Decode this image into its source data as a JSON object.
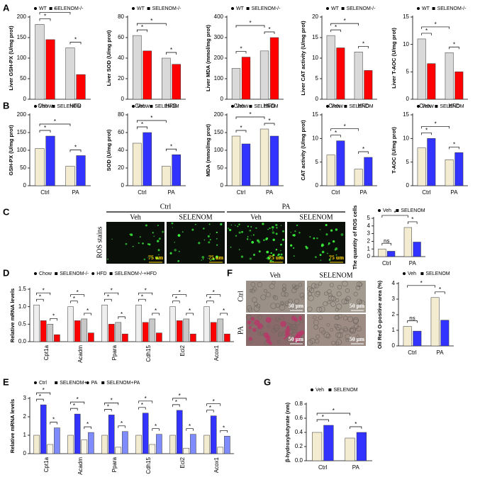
{
  "panel_labels": [
    "A",
    "B",
    "C",
    "D",
    "E",
    "F",
    "G"
  ],
  "panel_c_images": {
    "groups": [
      "Ctrl",
      "PA"
    ],
    "columns": [
      "Veh",
      "SELENOM",
      "Veh",
      "SELENOM"
    ],
    "row_label": "ROS stains",
    "scale_bar": "75 um"
  },
  "panel_f_images": {
    "columns": [
      "Veh",
      "SELENOM"
    ],
    "rows": [
      "Ctrl",
      "PA"
    ],
    "scale_bar": "50 μm"
  },
  "chart_data": [
    {
      "type": "bar",
      "ylabel": "Liver GSH-PX (U/mg prot)",
      "categories": [
        "Chow",
        "HFD"
      ],
      "series": [
        {
          "name": "WT",
          "color": "#d9d9d9",
          "values": [
            182,
            125
          ]
        },
        {
          "name": "SELENOM-/-",
          "color": "#ff0000",
          "values": [
            145,
            60
          ]
        }
      ],
      "ylim": [
        0,
        200
      ],
      "yticks": [
        0,
        50,
        100,
        150,
        200
      ],
      "sig": [
        "*",
        "*",
        "*"
      ]
    },
    {
      "type": "bar",
      "ylabel": "Liver SOD (U/mg prot)",
      "categories": [
        "Chow",
        "HFD"
      ],
      "series": [
        {
          "name": "WT",
          "color": "#d9d9d9",
          "values": [
            62,
            40
          ]
        },
        {
          "name": "SELENOM-/-",
          "color": "#ff0000",
          "values": [
            47,
            34
          ]
        }
      ],
      "ylim": [
        0,
        80
      ],
      "yticks": [
        0,
        20,
        40,
        60,
        80
      ],
      "sig": [
        "*",
        "*",
        "*"
      ]
    },
    {
      "type": "bar",
      "ylabel": "Liver MDA (mmol/mg prot)",
      "categories": [
        "Chow",
        "HFD"
      ],
      "series": [
        {
          "name": "WT",
          "color": "#d9d9d9",
          "values": [
            150,
            235
          ]
        },
        {
          "name": "SELENOM-/-",
          "color": "#ff0000",
          "values": [
            205,
            300
          ]
        }
      ],
      "ylim": [
        0,
        400
      ],
      "yticks": [
        0,
        100,
        200,
        300,
        400
      ],
      "sig": [
        "*",
        "*",
        "*"
      ]
    },
    {
      "type": "bar",
      "ylabel": "Liver CAT activity (U/mg prot)",
      "categories": [
        "Chow",
        "HFD"
      ],
      "series": [
        {
          "name": "WT",
          "color": "#d9d9d9",
          "values": [
            15.5,
            11.5
          ]
        },
        {
          "name": "SELENOM-/-",
          "color": "#ff0000",
          "values": [
            12.5,
            7
          ]
        }
      ],
      "ylim": [
        0,
        20
      ],
      "yticks": [
        0,
        5,
        10,
        15,
        20
      ],
      "sig": [
        "*",
        "*",
        "*"
      ]
    },
    {
      "type": "bar",
      "ylabel": "Liver T-AOC (U/mg prot)",
      "categories": [
        "Chow",
        "HFD"
      ],
      "series": [
        {
          "name": "WT",
          "color": "#d9d9d9",
          "values": [
            11,
            8.5
          ]
        },
        {
          "name": "SELENOM-/-",
          "color": "#ff0000",
          "values": [
            6.5,
            5
          ]
        }
      ],
      "ylim": [
        0,
        15
      ],
      "yticks": [
        0,
        5,
        10,
        15
      ],
      "sig": [
        "*",
        "*",
        "*"
      ]
    },
    {
      "type": "bar",
      "ylabel": "GSH-PX (U/mg prot)",
      "categories": [
        "Ctrl",
        "PA"
      ],
      "series": [
        {
          "name": "Veh",
          "color": "#f3ecd0",
          "values": [
            105,
            55
          ]
        },
        {
          "name": "SELENOM",
          "color": "#3333ff",
          "values": [
            140,
            85
          ]
        }
      ],
      "ylim": [
        0,
        200
      ],
      "yticks": [
        0,
        50,
        100,
        150,
        200
      ],
      "sig": [
        "*",
        "*",
        "*"
      ]
    },
    {
      "type": "bar",
      "ylabel": "SOD (U/mg prot)",
      "categories": [
        "Ctrl",
        "PA"
      ],
      "series": [
        {
          "name": "Veh",
          "color": "#f3ecd0",
          "values": [
            48,
            22
          ]
        },
        {
          "name": "SELENOM",
          "color": "#3333ff",
          "values": [
            60,
            35
          ]
        }
      ],
      "ylim": [
        0,
        80
      ],
      "yticks": [
        0,
        20,
        40,
        60,
        80
      ],
      "sig": [
        "*",
        "*",
        "*"
      ]
    },
    {
      "type": "bar",
      "ylabel": "MDA (mmol/mg prot)",
      "categories": [
        "Ctrl",
        "PA"
      ],
      "series": [
        {
          "name": "Veh",
          "color": "#f3ecd0",
          "values": [
            140,
            160
          ]
        },
        {
          "name": "SELENOM",
          "color": "#3333ff",
          "values": [
            118,
            140
          ]
        }
      ],
      "ylim": [
        0,
        200
      ],
      "yticks": [
        0,
        50,
        100,
        150,
        200
      ],
      "sig": [
        "*",
        "*",
        "*"
      ]
    },
    {
      "type": "bar",
      "ylabel": "CAT activity (U/mg prot)",
      "categories": [
        "Ctrl",
        "PA"
      ],
      "series": [
        {
          "name": "Veh",
          "color": "#f3ecd0",
          "values": [
            6.5,
            3.5
          ]
        },
        {
          "name": "SELENOM",
          "color": "#3333ff",
          "values": [
            9.5,
            6
          ]
        }
      ],
      "ylim": [
        0,
        15
      ],
      "yticks": [
        0,
        5,
        10,
        15
      ],
      "sig": [
        "*",
        "*",
        "*"
      ]
    },
    {
      "type": "bar",
      "ylabel": "T-AOC (U/mg prot)",
      "categories": [
        "Ctrl",
        "PA"
      ],
      "series": [
        {
          "name": "Veh",
          "color": "#f3ecd0",
          "values": [
            8,
            5.5
          ]
        },
        {
          "name": "SELENOM",
          "color": "#3333ff",
          "values": [
            10,
            7
          ]
        }
      ],
      "ylim": [
        0,
        15
      ],
      "yticks": [
        0,
        5,
        10,
        15
      ],
      "sig": [
        "*",
        "*",
        "*"
      ]
    },
    {
      "type": "bar",
      "ylabel": "The quantity of ROS cells",
      "categories": [
        "Ctrl",
        "PA"
      ],
      "series": [
        {
          "name": "Veh",
          "color": "#f3ecd0",
          "values": [
            1.0,
            3.8
          ]
        },
        {
          "name": "SELENOM",
          "color": "#3333ff",
          "values": [
            0.7,
            1.9
          ]
        }
      ],
      "ylim": [
        0,
        5
      ],
      "yticks": [
        0,
        1,
        2,
        3,
        4,
        5
      ],
      "sig": [
        "ns",
        "*",
        "*"
      ]
    },
    {
      "type": "bar",
      "ylabel": "Relative mRNA levels",
      "categories": [
        "Cpt1a",
        "Acadm",
        "Ppara",
        "Cdh15",
        "Eci2",
        "Acox1"
      ],
      "series": [
        {
          "name": "Chow",
          "color": "#eeeeee",
          "values": [
            1.05,
            1.0,
            1.05,
            1.05,
            1.0,
            1.0
          ]
        },
        {
          "name": "SELENOM-/-",
          "color": "#ff0000",
          "values": [
            0.6,
            0.6,
            0.5,
            0.55,
            0.6,
            0.55
          ]
        },
        {
          "name": "HFD",
          "color": "#c8c8c8",
          "values": [
            0.5,
            0.65,
            0.55,
            0.65,
            0.65,
            0.65
          ]
        },
        {
          "name": "SELENOM-/-+HFD",
          "color": "#ff0000",
          "values": [
            0.2,
            0.25,
            0.22,
            0.25,
            0.22,
            0.22
          ]
        }
      ],
      "ylim": [
        0,
        1.5
      ],
      "yticks": [
        {
          "value": 0,
          "label": "0.0"
        },
        0.5,
        {
          "value": 1,
          "label": "1.0"
        },
        1.5
      ],
      "sig": [
        [
          "*",
          "*",
          "*"
        ],
        [
          "*",
          "*",
          "*"
        ],
        [
          "*",
          "*",
          "*"
        ],
        [
          "*",
          "*",
          "*"
        ],
        [
          "*",
          "*",
          "*"
        ],
        [
          "*",
          "*",
          "*"
        ]
      ]
    },
    {
      "type": "bar",
      "ylabel": "Relative mRNA levels",
      "categories": [
        "Cpt1a",
        "Acadm",
        "Ppara",
        "Cdh15",
        "Eci2",
        "Acox1"
      ],
      "series": [
        {
          "name": "Ctrl",
          "color": "#f3ecd0",
          "values": [
            1.0,
            1.0,
            1.0,
            1.0,
            1.0,
            1.0
          ]
        },
        {
          "name": "SELENOM+",
          "color": "#3333ff",
          "values": [
            2.65,
            2.15,
            2.1,
            2.2,
            2.35,
            2.05
          ]
        },
        {
          "name": "PA",
          "color": "#faf6e6",
          "values": [
            0.5,
            0.75,
            0.35,
            0.5,
            0.3,
            0.35
          ]
        },
        {
          "name": "SELENOM+PA",
          "color": "#7f8cff",
          "values": [
            1.4,
            1.15,
            1.2,
            1.05,
            1.05,
            0.95
          ]
        }
      ],
      "ylim": [
        0,
        3
      ],
      "yticks": [
        0,
        1,
        2,
        3
      ],
      "sig": [
        [
          "*",
          "*",
          "*"
        ],
        [
          "*",
          "*",
          "*"
        ],
        [
          "*",
          "*",
          "*"
        ],
        [
          "*",
          "*",
          "*"
        ],
        [
          "*",
          "*",
          "*"
        ],
        [
          "*",
          "*",
          "*"
        ]
      ]
    },
    {
      "type": "bar",
      "ylabel": "Oil Red O-positive area (%)",
      "categories": [
        "Ctrl",
        "PA"
      ],
      "series": [
        {
          "name": "Veh",
          "color": "#f3ecd0",
          "values": [
            1.25,
            3.1
          ]
        },
        {
          "name": "SELENOM",
          "color": "#3333ff",
          "values": [
            0.95,
            1.65
          ]
        }
      ],
      "ylim": [
        0,
        4
      ],
      "yticks": [
        0,
        1,
        2,
        3,
        4
      ],
      "sig": [
        "ns",
        "*",
        "*"
      ]
    },
    {
      "type": "bar",
      "ylabel": "β-hydroxybutyrate (nm)",
      "categories": [
        "Ctrl",
        "PA"
      ],
      "series": [
        {
          "name": "Veh",
          "color": "#f3ecd0",
          "values": [
            0.4,
            0.32
          ]
        },
        {
          "name": "SELENOM",
          "color": "#3333ff",
          "values": [
            0.5,
            0.4
          ]
        }
      ],
      "ylim": [
        0,
        0.8
      ],
      "yticks": [
        {
          "value": 0,
          "label": "0.0"
        },
        0.2,
        0.4,
        0.6,
        0.8
      ],
      "sig": [
        "*",
        "*",
        "*"
      ]
    }
  ]
}
